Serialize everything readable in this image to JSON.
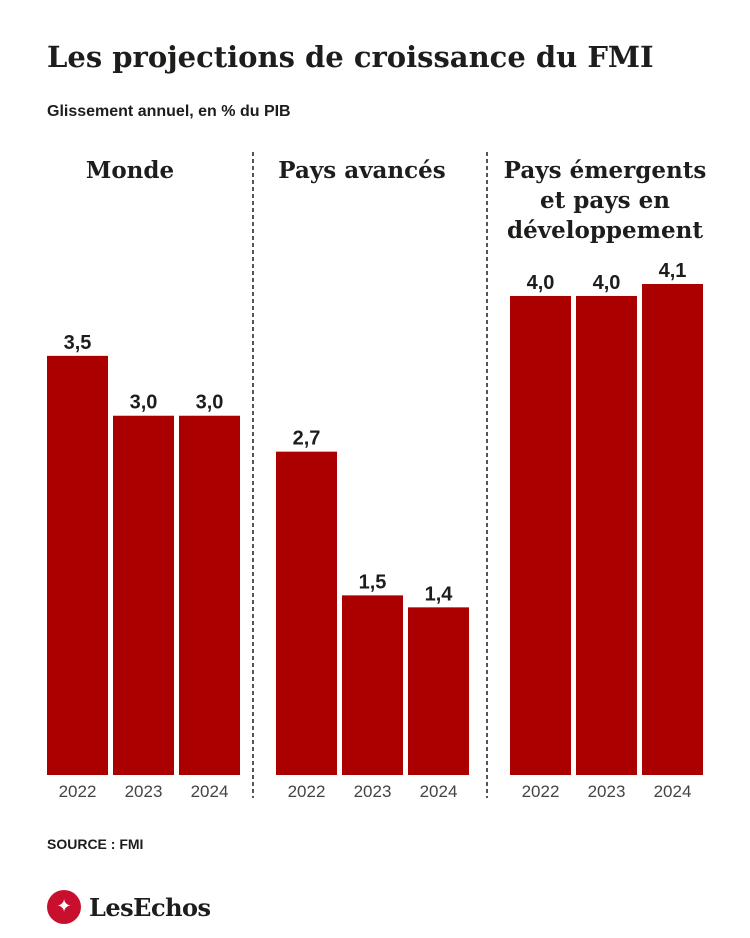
{
  "header": {
    "title": "Les projections de croissance du FMI",
    "subtitle": "Glissement annuel, en % du PIB"
  },
  "chart_data": [
    {
      "type": "bar",
      "title": [
        "Monde"
      ],
      "categories": [
        "2022",
        "2023",
        "2024"
      ],
      "values": [
        3.5,
        3.0,
        3.0
      ],
      "value_labels": [
        "3,5",
        "3,0",
        "3,0"
      ],
      "ylim": [
        0,
        4.1
      ],
      "color": "#ab0000",
      "grid": false
    },
    {
      "type": "bar",
      "title": [
        "Pays avancés"
      ],
      "categories": [
        "2022",
        "2023",
        "2024"
      ],
      "values": [
        2.7,
        1.5,
        1.4
      ],
      "value_labels": [
        "2,7",
        "1,5",
        "1,4"
      ],
      "ylim": [
        0,
        4.1
      ],
      "color": "#ab0000",
      "grid": false
    },
    {
      "type": "bar",
      "title": [
        "Pays émergents",
        "et pays en",
        "développement"
      ],
      "categories": [
        "2022",
        "2023",
        "2024"
      ],
      "values": [
        4.0,
        4.0,
        4.1
      ],
      "value_labels": [
        "4,0",
        "4,0",
        "4,1"
      ],
      "ylim": [
        0,
        4.1
      ],
      "color": "#ab0000",
      "grid": false
    }
  ],
  "footer": {
    "source": "SOURCE : FMI",
    "logo_text": "LesEchos",
    "logo_icon": "les-echos-emblem-icon"
  }
}
